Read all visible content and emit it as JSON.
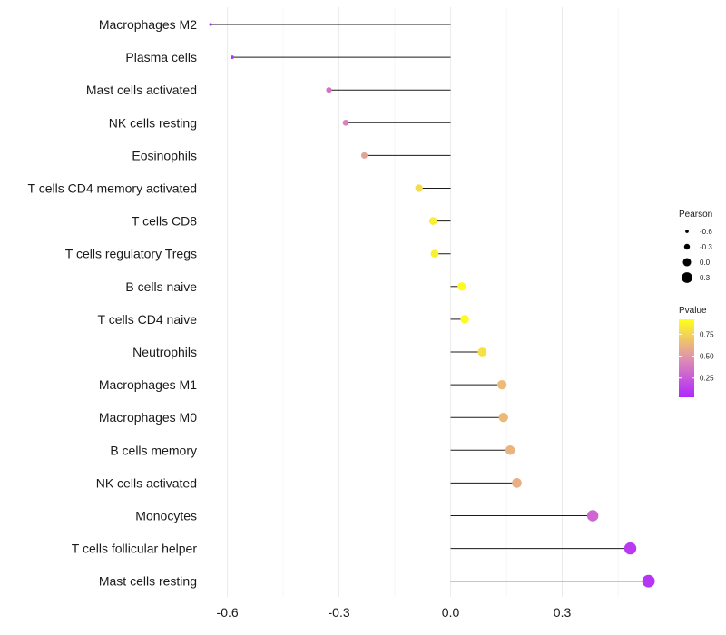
{
  "chart_data": {
    "type": "lollipop",
    "title": "",
    "xlabel": "",
    "ylabel": "",
    "xlim": [
      -0.66,
      0.55
    ],
    "x_ticks": [
      -0.6,
      -0.3,
      0.0,
      0.3
    ],
    "x_tick_labels": [
      "-0.6",
      "-0.3",
      "0.0",
      "0.3"
    ],
    "grid": true,
    "categories": [
      "Macrophages M2",
      "Plasma cells",
      "Mast cells activated",
      "NK cells resting",
      "Eosinophils",
      "T cells CD4 memory activated",
      "T cells CD8",
      "T cells regulatory  Tregs",
      "B cells naive",
      "T cells CD4 naive",
      "Neutrophils",
      "Macrophages M1",
      "Macrophages M0",
      "B cells memory",
      "NK cells activated",
      "Monocytes",
      "T cells follicular helper",
      "Mast cells resting"
    ],
    "values": [
      -0.645,
      -0.587,
      -0.327,
      -0.282,
      -0.232,
      -0.085,
      -0.047,
      -0.043,
      0.03,
      0.038,
      0.085,
      0.138,
      0.142,
      0.16,
      0.178,
      0.382,
      0.483,
      0.532
    ],
    "pvalues": [
      0.04,
      0.08,
      0.35,
      0.42,
      0.55,
      0.78,
      0.85,
      0.86,
      0.9,
      0.9,
      0.8,
      0.65,
      0.64,
      0.62,
      0.6,
      0.3,
      0.12,
      0.09
    ],
    "legend_size": {
      "title": "Pearson",
      "labels": [
        "-0.6",
        "-0.3",
        "0.0",
        "0.3"
      ],
      "values": [
        -0.6,
        -0.3,
        0.0,
        0.3
      ]
    },
    "legend_color": {
      "title": "Pvalue",
      "labels": [
        "0.75",
        "0.50",
        "0.25"
      ],
      "values": [
        0.75,
        0.5,
        0.25
      ],
      "range": [
        0.03,
        0.92
      ],
      "low_color": "#b026ff",
      "mid_color": "#e090b0",
      "high_color": "#ffff1a"
    },
    "legend_position": "right"
  }
}
